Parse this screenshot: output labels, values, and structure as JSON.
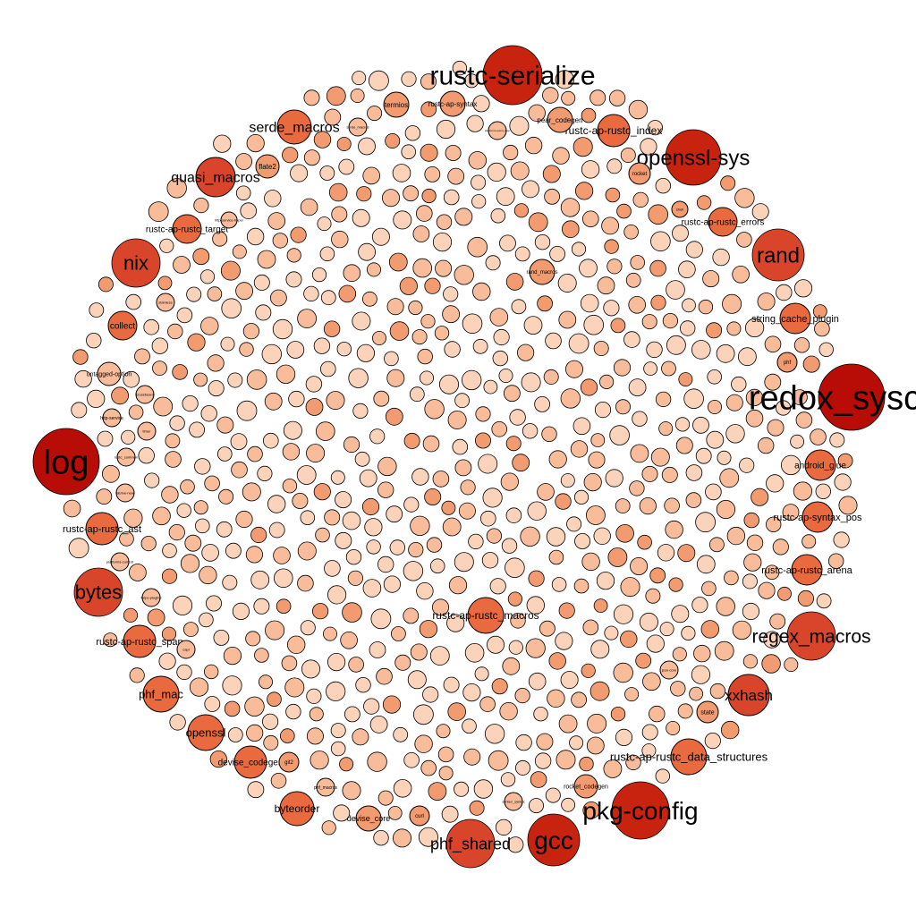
{
  "diagram": {
    "type": "packed-bubble-graph",
    "colors": {
      "deep": "#b80c07",
      "dark": "#c8230f",
      "mid": "#d9452a",
      "orange": "#ea6a40",
      "light": "#f29b70",
      "pale": "#f8bc9a",
      "faint": "#fbd2ba",
      "stroke": "#000000"
    },
    "labeled_nodes": [
      {
        "label": "rustc-serialize",
        "weight": 5
      },
      {
        "label": "redox_syscall",
        "weight": 6
      },
      {
        "label": "log",
        "weight": 6
      },
      {
        "label": "pkg-config",
        "weight": 5
      },
      {
        "label": "gcc",
        "weight": 5
      },
      {
        "label": "openssl-sys",
        "weight": 4
      },
      {
        "label": "rand",
        "weight": 4
      },
      {
        "label": "nix",
        "weight": 4
      },
      {
        "label": "bytes",
        "weight": 4
      },
      {
        "label": "regex_macros",
        "weight": 4
      },
      {
        "label": "xxhash",
        "weight": 4
      },
      {
        "label": "phf_shared",
        "weight": 4
      },
      {
        "label": "quasi_macros",
        "weight": 3
      },
      {
        "label": "serde_macros",
        "weight": 3
      },
      {
        "label": "rustc-ap-rustc_index",
        "weight": 3
      },
      {
        "label": "rustc-ap-rustc_errors",
        "weight": 3
      },
      {
        "label": "rustc-ap-rustc_target",
        "weight": 3
      },
      {
        "label": "string_cache_plugin",
        "weight": 3
      },
      {
        "label": "android_glue",
        "weight": 3
      },
      {
        "label": "rustc-ap-syntax_pos",
        "weight": 3
      },
      {
        "label": "rustc-ap-rustc_arena",
        "weight": 3
      },
      {
        "label": "rustc-ap-rustc_macros",
        "weight": 3
      },
      {
        "label": "rustc-ap-rustc_data_structures",
        "weight": 3
      },
      {
        "label": "rustc-ap-rustc_ast",
        "weight": 3
      },
      {
        "label": "rustc-ap-rustc_span",
        "weight": 3
      },
      {
        "label": "phf_mac",
        "weight": 3
      },
      {
        "label": "openssl",
        "weight": 3
      },
      {
        "label": "devise_codegen",
        "weight": 3
      },
      {
        "label": "byteorder",
        "weight": 3
      },
      {
        "label": "collect",
        "weight": 2
      },
      {
        "label": "rustc-ap-syntax",
        "weight": 2
      },
      {
        "label": "pear_codegen",
        "weight": 2
      },
      {
        "label": "termios",
        "weight": 2
      },
      {
        "label": "flate2",
        "weight": 2
      },
      {
        "label": "rocket",
        "weight": 2
      },
      {
        "label": "phf",
        "weight": 2
      },
      {
        "label": "state",
        "weight": 2
      },
      {
        "label": "curl",
        "weight": 2
      },
      {
        "label": "devise_core",
        "weight": 2
      },
      {
        "label": "rocket_codegen",
        "weight": 2
      },
      {
        "label": "untagged-option",
        "weight": 2
      },
      {
        "label": "rand_macros",
        "weight": 2
      },
      {
        "label": "git2",
        "weight": 2
      },
      {
        "label": "phf_macros",
        "weight": 1
      },
      {
        "label": "syntex_syntax",
        "weight": 1
      },
      {
        "label": "http-service",
        "weight": 1
      },
      {
        "label": "http-service-hyper",
        "weight": 1
      },
      {
        "label": "platforms-current",
        "weight": 1
      },
      {
        "label": "tarpc-plugins",
        "weight": 1
      },
      {
        "label": "json-core",
        "weight": 1
      },
      {
        "label": "serde_macros",
        "weight": 1
      },
      {
        "label": "platforms-event_loop",
        "weight": 1
      },
      {
        "label": "stainless",
        "weight": 1
      },
      {
        "label": "shell",
        "weight": 1
      },
      {
        "label": "derive-new",
        "weight": 1
      },
      {
        "label": "rustc_common",
        "weight": 1
      },
      {
        "label": "crossbeam",
        "weight": 1
      },
      {
        "label": "timer",
        "weight": 1
      },
      {
        "label": "capi",
        "weight": 1
      }
    ]
  }
}
